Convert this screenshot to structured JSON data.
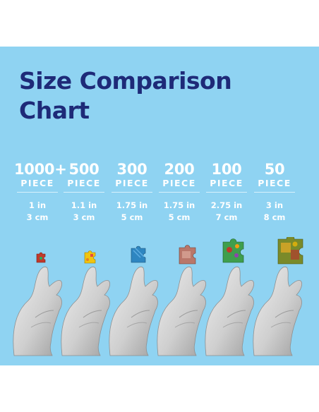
{
  "title_line1": "Size Comparison",
  "title_line2": "Chart",
  "columns": [
    {
      "count": "1000+",
      "unit": "PIECE",
      "inches": "1 in",
      "cm": "3 cm"
    },
    {
      "count": "500",
      "unit": "PIECE",
      "inches": "1.1 in",
      "cm": "3 cm"
    },
    {
      "count": "300",
      "unit": "PIECE",
      "inches": "1.75 in",
      "cm": "5 cm"
    },
    {
      "count": "200",
      "unit": "PIECE",
      "inches": "1.75 in",
      "cm": "5 cm"
    },
    {
      "count": "100",
      "unit": "PIECE",
      "inches": "2.75 in",
      "cm": "7 cm"
    },
    {
      "count": "50",
      "unit": "PIECE",
      "inches": "3 in",
      "cm": "8 cm"
    }
  ],
  "colors": {
    "background": "#8fd3f2",
    "title": "#1e2a78",
    "text": "#ffffff",
    "hand": "#cfcfcf"
  },
  "icons": [
    "hand-holding-puzzle-piece-icon"
  ]
}
